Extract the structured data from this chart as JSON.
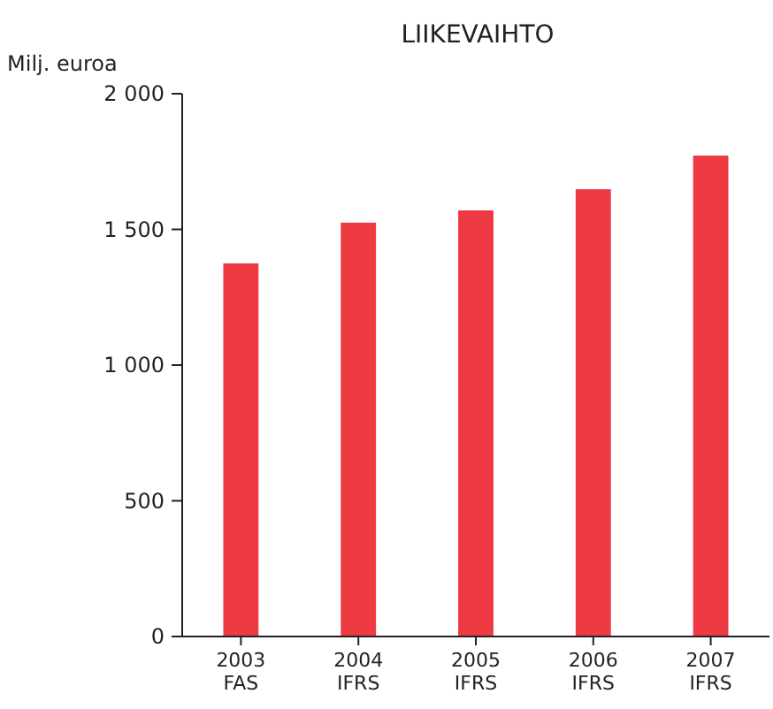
{
  "chart_data": {
    "type": "bar",
    "title": "LIIKEVAIHTO",
    "ylabel": "Milj. euroa",
    "categories": [
      "2003\nFAS",
      "2004\nIFRS",
      "2005\nIFRS",
      "2006\nIFRS",
      "2007\nIFRS"
    ],
    "values": [
      1375,
      1525,
      1570,
      1648,
      1772
    ],
    "color": "#ee3a43",
    "ylim": [
      0,
      2000
    ],
    "yticks": [
      0,
      500,
      {
        "value": 1000,
        "label": "1 000"
      },
      {
        "value": 1500,
        "label": "1 500"
      },
      {
        "value": 2000,
        "label": "2 000"
      }
    ],
    "grid": false
  }
}
